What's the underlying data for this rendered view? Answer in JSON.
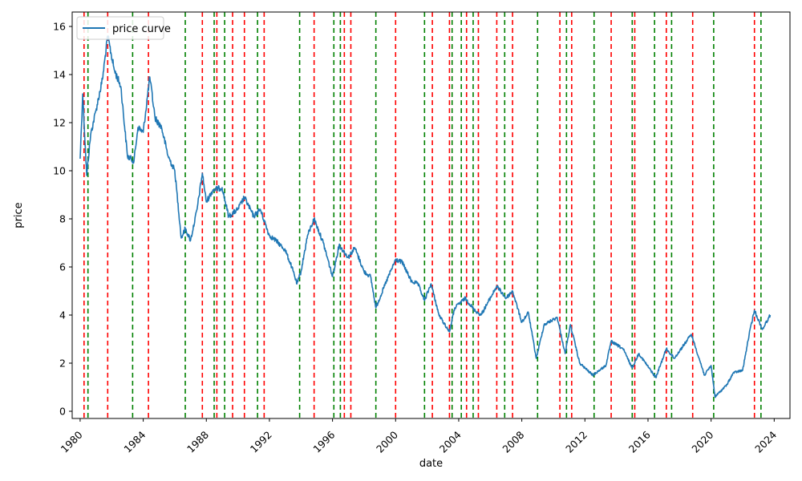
{
  "chart_data": {
    "type": "line",
    "title": "",
    "xlabel": "date",
    "ylabel": "price",
    "xlim": [
      "1979-07-01",
      "2025-01-01"
    ],
    "ylim": [
      -0.3,
      16.6
    ],
    "x_ticks": [
      "1980",
      "1984",
      "1988",
      "1992",
      "1996",
      "2000",
      "2004",
      "2008",
      "2012",
      "2016",
      "2020",
      "2024"
    ],
    "y_ticks": [
      "0",
      "2",
      "4",
      "6",
      "8",
      "10",
      "12",
      "14",
      "16"
    ],
    "legend": {
      "position": "top-left",
      "label": "price curve"
    },
    "series": [
      {
        "name": "price curve",
        "color": "#1f77b4",
        "points": [
          [
            "1980-01-01",
            10.5
          ],
          [
            "1980-03-01",
            13.2
          ],
          [
            "1980-06-01",
            9.8
          ],
          [
            "1980-09-01",
            11.5
          ],
          [
            "1981-01-01",
            12.5
          ],
          [
            "1981-06-01",
            13.8
          ],
          [
            "1981-10-01",
            15.6
          ],
          [
            "1982-03-01",
            14.2
          ],
          [
            "1982-08-01",
            13.5
          ],
          [
            "1983-01-01",
            10.6
          ],
          [
            "1983-06-01",
            10.4
          ],
          [
            "1983-09-01",
            11.8
          ],
          [
            "1984-01-01",
            11.6
          ],
          [
            "1984-06-01",
            13.9
          ],
          [
            "1984-10-01",
            12.2
          ],
          [
            "1985-03-01",
            11.8
          ],
          [
            "1985-08-01",
            10.6
          ],
          [
            "1986-01-01",
            10.0
          ],
          [
            "1986-06-01",
            7.2
          ],
          [
            "1986-09-01",
            7.6
          ],
          [
            "1987-01-01",
            7.1
          ],
          [
            "1987-06-01",
            8.4
          ],
          [
            "1987-10-01",
            9.9
          ],
          [
            "1988-01-01",
            8.7
          ],
          [
            "1988-06-01",
            9.2
          ],
          [
            "1989-01-01",
            9.3
          ],
          [
            "1989-06-01",
            8.1
          ],
          [
            "1990-01-01",
            8.4
          ],
          [
            "1990-06-01",
            8.9
          ],
          [
            "1991-01-01",
            8.1
          ],
          [
            "1991-06-01",
            8.4
          ],
          [
            "1992-01-01",
            7.3
          ],
          [
            "1992-06-01",
            7.1
          ],
          [
            "1993-01-01",
            6.7
          ],
          [
            "1993-06-01",
            6.0
          ],
          [
            "1993-10-01",
            5.3
          ],
          [
            "1994-01-01",
            5.8
          ],
          [
            "1994-06-01",
            7.3
          ],
          [
            "1994-11-01",
            8.0
          ],
          [
            "1995-06-01",
            7.0
          ],
          [
            "1996-01-01",
            5.6
          ],
          [
            "1996-06-01",
            6.9
          ],
          [
            "1997-01-01",
            6.4
          ],
          [
            "1997-06-01",
            6.8
          ],
          [
            "1998-01-01",
            5.8
          ],
          [
            "1998-06-01",
            5.6
          ],
          [
            "1998-10-01",
            4.3
          ],
          [
            "1999-06-01",
            5.4
          ],
          [
            "2000-01-01",
            6.3
          ],
          [
            "2000-06-01",
            6.2
          ],
          [
            "2001-01-01",
            5.4
          ],
          [
            "2001-06-01",
            5.3
          ],
          [
            "2001-11-01",
            4.6
          ],
          [
            "2002-04-01",
            5.3
          ],
          [
            "2002-10-01",
            4.0
          ],
          [
            "2003-06-01",
            3.3
          ],
          [
            "2003-10-01",
            4.3
          ],
          [
            "2004-06-01",
            4.7
          ],
          [
            "2005-01-01",
            4.2
          ],
          [
            "2005-06-01",
            4.0
          ],
          [
            "2006-06-01",
            5.2
          ],
          [
            "2007-01-01",
            4.7
          ],
          [
            "2007-06-01",
            5.0
          ],
          [
            "2008-01-01",
            3.7
          ],
          [
            "2008-06-01",
            4.1
          ],
          [
            "2008-12-01",
            2.2
          ],
          [
            "2009-06-01",
            3.6
          ],
          [
            "2010-04-01",
            3.9
          ],
          [
            "2010-10-01",
            2.4
          ],
          [
            "2011-02-01",
            3.6
          ],
          [
            "2011-09-01",
            2.0
          ],
          [
            "2012-07-01",
            1.5
          ],
          [
            "2013-05-01",
            1.9
          ],
          [
            "2013-09-01",
            2.9
          ],
          [
            "2014-06-01",
            2.6
          ],
          [
            "2015-01-01",
            1.8
          ],
          [
            "2015-06-01",
            2.4
          ],
          [
            "2016-07-01",
            1.4
          ],
          [
            "2017-03-01",
            2.6
          ],
          [
            "2017-09-01",
            2.2
          ],
          [
            "2018-10-01",
            3.2
          ],
          [
            "2019-08-01",
            1.5
          ],
          [
            "2020-01-01",
            1.9
          ],
          [
            "2020-04-01",
            0.6
          ],
          [
            "2021-01-01",
            1.1
          ],
          [
            "2021-06-01",
            1.6
          ],
          [
            "2022-01-01",
            1.7
          ],
          [
            "2022-06-01",
            3.2
          ],
          [
            "2022-10-01",
            4.2
          ],
          [
            "2023-04-01",
            3.4
          ],
          [
            "2023-10-01",
            4.0
          ]
        ]
      }
    ],
    "vertical_lines": {
      "red": {
        "color": "#ff0000",
        "dates": [
          "1980-04-01",
          "1981-10-01",
          "1984-05-01",
          "1987-10-01",
          "1988-09-01",
          "1989-09-01",
          "1990-06-01",
          "1991-09-01",
          "1994-11-01",
          "1996-10-01",
          "1997-03-01",
          "2000-01-01",
          "2002-05-01",
          "2003-06-01",
          "2004-07-01",
          "2005-04-01",
          "2006-06-01",
          "2007-06-01",
          "2010-06-01",
          "2011-03-01",
          "2013-09-01",
          "2015-03-01",
          "2017-03-01",
          "2018-11-01",
          "2022-10-01"
        ]
      },
      "green": {
        "color": "#008000",
        "dates": [
          "1980-07-01",
          "1983-05-01",
          "1986-09-01",
          "1988-07-01",
          "1989-03-01",
          "1991-04-01",
          "1993-12-01",
          "1996-02-01",
          "1996-07-01",
          "1998-10-01",
          "2001-11-01",
          "2003-08-01",
          "2004-03-01",
          "2004-12-01",
          "2006-12-01",
          "2009-01-01",
          "2010-11-01",
          "2012-08-01",
          "2015-01-01",
          "2016-06-01",
          "2017-07-01",
          "2020-03-01",
          "2023-03-01"
        ]
      }
    }
  }
}
